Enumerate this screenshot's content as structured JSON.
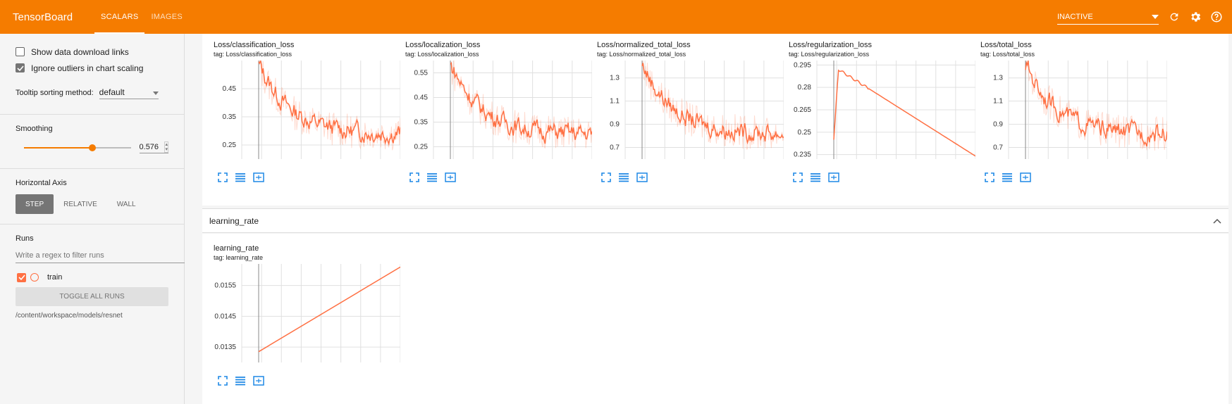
{
  "topbar": {
    "brand": "TensorBoard",
    "tabs": [
      "SCALARS",
      "IMAGES"
    ],
    "status_select": "INACTIVE",
    "accent": "#f57c00"
  },
  "sidebar": {
    "show_download_links": "Show data download links",
    "ignore_outliers": "Ignore outliers in chart scaling",
    "tooltip_label": "Tooltip sorting method:",
    "tooltip_value": "default",
    "smoothing_label": "Smoothing",
    "smoothing_value": "0.576",
    "smoothing_fraction": 0.576,
    "horizontal_axis_label": "Horizontal Axis",
    "axis_buttons": [
      "STEP",
      "RELATIVE",
      "WALL"
    ],
    "runs_label": "Runs",
    "filter_placeholder": "Write a regex to filter runs",
    "run_name": "train",
    "toggle_all": "TOGGLE ALL RUNS",
    "path": "/content/workspace/models/resnet"
  },
  "group": {
    "name": "learning_rate"
  },
  "chart_data": [
    {
      "type": "line",
      "title": "Loss/classification_loss",
      "tag": "tag: Loss/classification_loss",
      "yticks": [
        "0.45",
        "0.35",
        "0.25"
      ],
      "ylim": [
        0.2,
        0.55
      ],
      "series_color": "#ff7043"
    },
    {
      "type": "line",
      "title": "Loss/localization_loss",
      "tag": "tag: Loss/localization_loss",
      "yticks": [
        "0.55",
        "0.45",
        "0.35",
        "0.25"
      ],
      "ylim": [
        0.2,
        0.6
      ],
      "series_color": "#ff7043"
    },
    {
      "type": "line",
      "title": "Loss/normalized_total_loss",
      "tag": "tag: Loss/normalized_total_loss",
      "yticks": [
        "1.3",
        "1.1",
        "0.9",
        "0.7"
      ],
      "ylim": [
        0.6,
        1.45
      ],
      "series_color": "#ff7043"
    },
    {
      "type": "line",
      "title": "Loss/regularization_loss",
      "tag": "tag: Loss/regularization_loss",
      "yticks": [
        "0.295",
        "0.28",
        "0.265",
        "0.25",
        "0.235"
      ],
      "ylim": [
        0.232,
        0.298
      ],
      "series_color": "#ff7043"
    },
    {
      "type": "line",
      "title": "Loss/total_loss",
      "tag": "tag: Loss/total_loss",
      "yticks": [
        "1.3",
        "1.1",
        "0.9",
        "0.7"
      ],
      "ylim": [
        0.6,
        1.45
      ],
      "series_color": "#ff7043"
    },
    {
      "type": "line",
      "title": "learning_rate",
      "tag": "tag: learning_rate",
      "yticks": [
        "0.0155",
        "0.0145",
        "0.0135"
      ],
      "ylim": [
        0.013,
        0.0162
      ],
      "values": [
        0.01335,
        0.0161
      ],
      "series_color": "#ff7043"
    }
  ]
}
